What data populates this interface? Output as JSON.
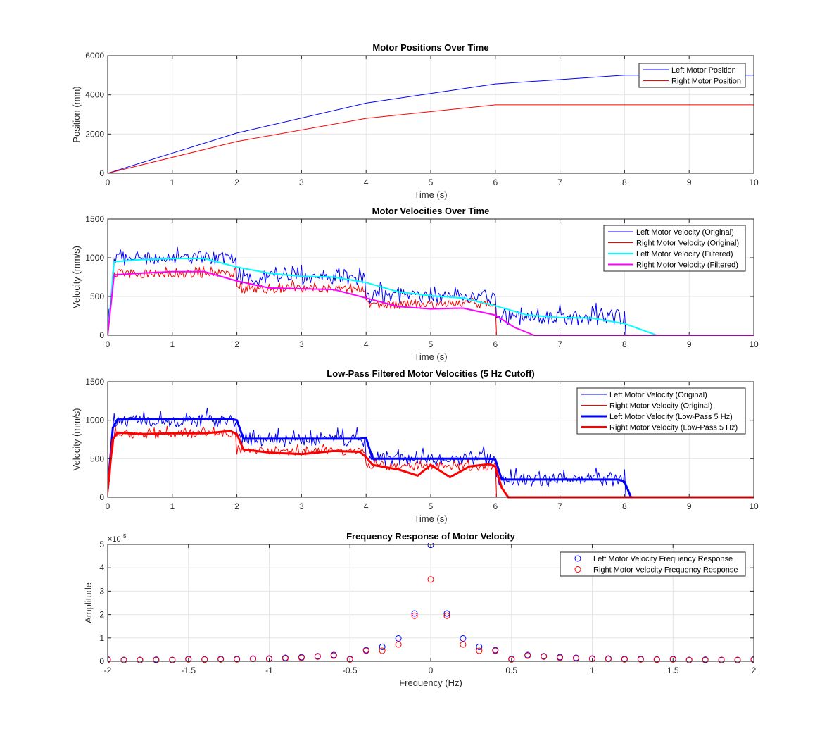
{
  "figure": {
    "background": "#ffffff"
  },
  "chart_data": [
    {
      "type": "line",
      "title": "Motor Positions Over Time",
      "xlabel": "Time (s)",
      "ylabel": "Position (mm)",
      "xlim": [
        0,
        10
      ],
      "ylim": [
        0,
        6000
      ],
      "xticks": [
        0,
        1,
        2,
        3,
        4,
        5,
        6,
        7,
        8,
        9,
        10
      ],
      "yticks": [
        0,
        2000,
        4000,
        6000
      ],
      "grid": true,
      "legend_position": "top-right",
      "series": [
        {
          "name": "Left Motor Position",
          "color": "#0000ff",
          "x": [
            0,
            2,
            4,
            6,
            8,
            10
          ],
          "y": [
            0,
            2050,
            3580,
            4560,
            5000,
            5000
          ]
        },
        {
          "name": "Right Motor Position",
          "color": "#ff0000",
          "x": [
            0,
            2,
            4,
            6,
            10
          ],
          "y": [
            0,
            1620,
            2800,
            3490,
            3490
          ]
        }
      ]
    },
    {
      "type": "line",
      "title": "Motor Velocities Over Time",
      "xlabel": "Time (s)",
      "ylabel": "Velocity (mm/s)",
      "xlim": [
        0,
        10
      ],
      "ylim": [
        0,
        1500
      ],
      "xticks": [
        0,
        1,
        2,
        3,
        4,
        5,
        6,
        7,
        8,
        9,
        10
      ],
      "yticks": [
        0,
        500,
        1000,
        1500
      ],
      "grid": true,
      "legend_position": "top-right",
      "series": [
        {
          "name": "Left Motor Velocity (Original)",
          "color": "#0000ff",
          "width": 1,
          "segments": [
            {
              "x0": 0,
              "x1": 2,
              "level": 1000
            },
            {
              "x0": 2,
              "x1": 4,
              "level": 750
            },
            {
              "x0": 4,
              "x1": 6,
              "level": 500
            },
            {
              "x0": 6,
              "x1": 8,
              "level": 230
            },
            {
              "x0": 8,
              "x1": 10,
              "level": 0
            }
          ],
          "noise": 200
        },
        {
          "name": "Right Motor Velocity (Original)",
          "color": "#ff0000",
          "width": 1,
          "segments": [
            {
              "x0": 0,
              "x1": 2,
              "level": 800
            },
            {
              "x0": 2,
              "x1": 4,
              "level": 600
            },
            {
              "x0": 4,
              "x1": 6,
              "level": 400
            },
            {
              "x0": 6,
              "x1": 10,
              "level": 0
            }
          ],
          "noise": 120
        },
        {
          "name": "Left Motor Velocity (Filtered)",
          "color": "#00ffff",
          "width": 2,
          "x": [
            0,
            0.1,
            0.5,
            1,
            1.5,
            2,
            2.5,
            3,
            3.5,
            4,
            4.5,
            5,
            5.5,
            6,
            6.5,
            7,
            7.5,
            8,
            8.5,
            10
          ],
          "y": [
            0,
            950,
            975,
            990,
            990,
            880,
            800,
            760,
            750,
            680,
            560,
            510,
            480,
            380,
            260,
            230,
            220,
            150,
            0,
            0
          ]
        },
        {
          "name": "Right Motor Velocity (Filtered)",
          "color": "#ff00ff",
          "width": 2,
          "x": [
            0,
            0.1,
            0.5,
            1,
            1.5,
            2,
            2.5,
            3,
            3.5,
            4,
            4.5,
            5,
            5.5,
            6,
            6.3,
            6.6,
            10
          ],
          "y": [
            0,
            780,
            800,
            820,
            820,
            700,
            610,
            600,
            590,
            480,
            370,
            340,
            350,
            260,
            100,
            0,
            0
          ]
        }
      ]
    },
    {
      "type": "line",
      "title": "Low-Pass Filtered Motor Velocities (5 Hz Cutoff)",
      "xlabel": "Time (s)",
      "ylabel": "Velocity (mm/s)",
      "xlim": [
        0,
        10
      ],
      "ylim": [
        0,
        1500
      ],
      "xticks": [
        0,
        1,
        2,
        3,
        4,
        5,
        6,
        7,
        8,
        9,
        10
      ],
      "yticks": [
        0,
        500,
        1000,
        1500
      ],
      "grid": true,
      "legend_position": "top-right",
      "series": [
        {
          "name": "Left Motor Velocity (Original)",
          "color": "#0000ff",
          "width": 1,
          "segments": [
            {
              "x0": 0,
              "x1": 2,
              "level": 1000
            },
            {
              "x0": 2,
              "x1": 4,
              "level": 750
            },
            {
              "x0": 4,
              "x1": 6,
              "level": 500
            },
            {
              "x0": 6,
              "x1": 8,
              "level": 230
            },
            {
              "x0": 8,
              "x1": 10,
              "level": 0
            }
          ],
          "noise": 180
        },
        {
          "name": "Right Motor Velocity (Original)",
          "color": "#ff0000",
          "width": 1,
          "segments": [
            {
              "x0": 0,
              "x1": 2,
              "level": 820
            },
            {
              "x0": 2,
              "x1": 4,
              "level": 600
            },
            {
              "x0": 4,
              "x1": 6,
              "level": 400
            },
            {
              "x0": 6,
              "x1": 10,
              "level": 0
            }
          ],
          "noise": 110
        },
        {
          "name": "Left Motor Velocity (Low-Pass 5 Hz)",
          "color": "#0000ff",
          "width": 3,
          "x": [
            0,
            0.08,
            0.15,
            1.9,
            2.0,
            2.1,
            3.9,
            4.0,
            4.1,
            5.9,
            6.0,
            6.1,
            7.9,
            8.0,
            8.1,
            10
          ],
          "y": [
            100,
            900,
            1010,
            1020,
            1000,
            760,
            760,
            770,
            500,
            500,
            490,
            230,
            230,
            200,
            0,
            0
          ]
        },
        {
          "name": "Right Motor Velocity (Low-Pass 5 Hz)",
          "color": "#ff0000",
          "width": 3,
          "x": [
            0,
            0.08,
            0.15,
            0.5,
            1,
            1.5,
            1.9,
            2.0,
            2.1,
            2.5,
            3,
            3.5,
            3.9,
            4.0,
            4.1,
            4.5,
            4.8,
            5.0,
            5.3,
            5.6,
            5.9,
            6.0,
            6.1,
            6.2,
            10
          ],
          "y": [
            100,
            750,
            840,
            820,
            830,
            830,
            860,
            820,
            620,
            580,
            560,
            600,
            590,
            520,
            420,
            360,
            280,
            420,
            260,
            400,
            430,
            400,
            120,
            0,
            0
          ]
        }
      ]
    },
    {
      "type": "scatter",
      "title": "Frequency Response of Motor Velocity",
      "xlabel": "Frequency (Hz)",
      "ylabel": "Amplitude",
      "exponent_label": "×10",
      "exponent_power": "5",
      "xlim": [
        -2,
        2
      ],
      "ylim": [
        0,
        5
      ],
      "xticks": [
        -2,
        -1.5,
        -1,
        -0.5,
        0,
        0.5,
        1,
        1.5,
        2
      ],
      "xticklabels": [
        "-2",
        "-1.5",
        "-1",
        "-0.5",
        "0",
        "0.5",
        "1",
        "1.5",
        "2"
      ],
      "yticks": [
        0,
        1,
        2,
        3,
        4,
        5
      ],
      "grid": true,
      "legend_position": "top-right",
      "series": [
        {
          "name": "Left Motor Velocity Frequency Response",
          "color": "#0000ff",
          "x": [
            -2,
            -1.9,
            -1.8,
            -1.7,
            -1.6,
            -1.5,
            -1.4,
            -1.3,
            -1.2,
            -1.1,
            -1,
            -0.9,
            -0.8,
            -0.7,
            -0.6,
            -0.5,
            -0.4,
            -0.3,
            -0.2,
            -0.1,
            0,
            0.1,
            0.2,
            0.3,
            0.4,
            0.5,
            0.6,
            0.7,
            0.8,
            0.9,
            1,
            1.1,
            1.2,
            1.3,
            1.4,
            1.5,
            1.6,
            1.7,
            1.8,
            1.9,
            2
          ],
          "y": [
            0.08,
            0.06,
            0.06,
            0.07,
            0.06,
            0.1,
            0.08,
            0.1,
            0.1,
            0.12,
            0.12,
            0.15,
            0.18,
            0.22,
            0.27,
            0.1,
            0.48,
            0.62,
            0.98,
            2.05,
            4.98,
            2.05,
            0.98,
            0.62,
            0.48,
            0.1,
            0.27,
            0.22,
            0.18,
            0.15,
            0.12,
            0.12,
            0.1,
            0.1,
            0.08,
            0.1,
            0.06,
            0.07,
            0.06,
            0.06,
            0.08
          ]
        },
        {
          "name": "Right Motor Velocity Frequency Response",
          "color": "#ff0000",
          "x": [
            -2,
            -1.9,
            -1.8,
            -1.7,
            -1.6,
            -1.5,
            -1.4,
            -1.3,
            -1.2,
            -1.1,
            -1,
            -0.9,
            -0.8,
            -0.7,
            -0.6,
            -0.5,
            -0.4,
            -0.3,
            -0.2,
            -0.1,
            0,
            0.1,
            0.2,
            0.3,
            0.4,
            0.5,
            0.6,
            0.7,
            0.8,
            0.9,
            1,
            1.1,
            1.2,
            1.3,
            1.4,
            1.5,
            1.6,
            1.7,
            1.8,
            1.9,
            2
          ],
          "y": [
            0.06,
            0.05,
            0.05,
            0.05,
            0.05,
            0.08,
            0.07,
            0.08,
            0.08,
            0.1,
            0.1,
            0.12,
            0.15,
            0.2,
            0.24,
            0.08,
            0.45,
            0.45,
            0.72,
            1.95,
            3.5,
            1.95,
            0.72,
            0.45,
            0.45,
            0.08,
            0.24,
            0.2,
            0.15,
            0.12,
            0.1,
            0.1,
            0.08,
            0.08,
            0.07,
            0.08,
            0.05,
            0.05,
            0.05,
            0.05,
            0.06
          ]
        }
      ]
    }
  ]
}
